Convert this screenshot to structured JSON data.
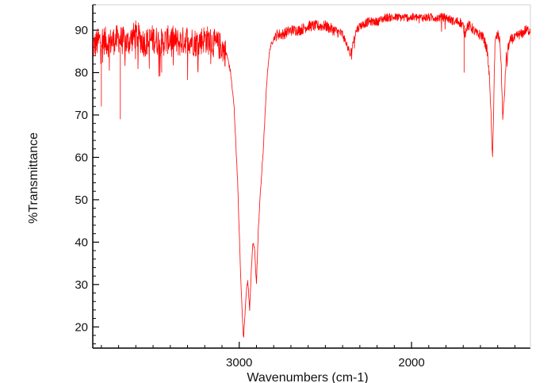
{
  "chart_data": {
    "type": "line",
    "title": "",
    "xlabel": "Wavenumbers (cm-1)",
    "ylabel": "%Transmittance",
    "x_direction": "decreasing",
    "xlim": [
      3850,
      1310
    ],
    "ylim": [
      15,
      96
    ],
    "x_ticks": [
      3000,
      2000
    ],
    "y_ticks": [
      20,
      30,
      40,
      50,
      60,
      70,
      80,
      90
    ],
    "grid": false,
    "legend": "none",
    "series": [
      {
        "color": "#ff0000",
        "x": [
          3850,
          3800,
          3760,
          3700,
          3650,
          3600,
          3550,
          3500,
          3450,
          3400,
          3350,
          3300,
          3250,
          3200,
          3150,
          3100,
          3070,
          3050,
          3030,
          3010,
          2990,
          2975,
          2960,
          2950,
          2940,
          2930,
          2920,
          2910,
          2900,
          2890,
          2880,
          2870,
          2860,
          2850,
          2840,
          2830,
          2820,
          2800,
          2780,
          2750,
          2700,
          2650,
          2600,
          2550,
          2500,
          2450,
          2400,
          2370,
          2355,
          2340,
          2320,
          2300,
          2250,
          2200,
          2150,
          2100,
          2050,
          2000,
          1950,
          1900,
          1850,
          1800,
          1750,
          1720,
          1700,
          1690,
          1680,
          1660,
          1640,
          1620,
          1600,
          1580,
          1560,
          1545,
          1535,
          1530,
          1525,
          1520,
          1515,
          1510,
          1500,
          1490,
          1485,
          1480,
          1475,
          1470,
          1460,
          1455,
          1450,
          1445,
          1440,
          1430,
          1420,
          1400,
          1380,
          1360,
          1340,
          1320,
          1310
        ],
        "y": [
          86,
          88,
          87,
          88,
          87,
          89,
          87,
          88,
          87,
          88,
          87,
          88,
          87,
          88,
          87,
          86,
          84,
          80,
          72,
          55,
          30,
          17,
          28,
          31,
          24,
          33,
          40,
          38,
          30,
          42,
          50,
          56,
          62,
          70,
          78,
          83,
          86,
          88,
          89,
          89,
          90,
          90,
          91,
          91,
          91,
          90,
          89,
          86,
          84,
          87,
          90,
          91,
          92,
          92,
          93,
          93,
          93,
          93,
          93,
          93,
          93,
          93,
          92,
          92,
          91,
          89,
          91,
          91,
          90,
          89,
          89,
          88,
          85,
          77,
          65,
          59,
          68,
          80,
          87,
          88,
          89,
          88,
          86,
          82,
          75,
          69,
          75,
          80,
          84,
          82,
          86,
          87,
          88,
          88,
          89,
          89,
          90,
          90,
          90
        ]
      }
    ]
  }
}
